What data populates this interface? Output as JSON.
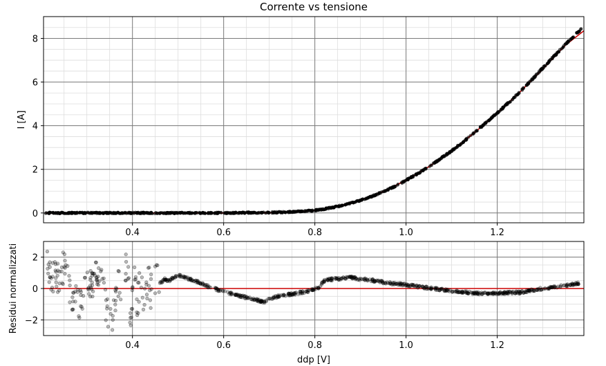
{
  "chart_data": [
    {
      "type": "scatter",
      "title": "Corrente vs tensione",
      "xlabel": "",
      "ylabel": "I [A]",
      "xlim": [
        0.205,
        1.39
      ],
      "ylim": [
        -0.45,
        9.0
      ],
      "x_ticks": [
        0.4,
        0.6,
        0.8,
        1.0,
        1.2
      ],
      "x_tick_labels": [
        "0.4",
        "0.6",
        "0.8",
        "1.0",
        "1.2"
      ],
      "y_ticks": [
        0,
        2,
        4,
        6,
        8
      ],
      "y_tick_labels": [
        "0",
        "2",
        "4",
        "6",
        "8"
      ],
      "grid": "major and minor",
      "colors": {
        "points": "#000000",
        "fit": "#cc0000",
        "major_grid": "#7a7a7a",
        "minor_grid": "#dddddd"
      },
      "series": [
        {
          "kind": "points",
          "x": [
            0.21,
            0.25,
            0.3,
            0.35,
            0.4,
            0.45,
            0.5,
            0.55,
            0.6,
            0.65,
            0.7,
            0.72,
            0.75,
            0.78,
            0.8,
            0.82,
            0.85,
            0.88,
            0.9,
            0.92,
            0.95,
            0.98,
            1.0,
            1.03,
            1.05,
            1.08,
            1.1,
            1.13,
            1.15,
            1.18,
            1.2,
            1.23,
            1.25,
            1.28,
            1.3,
            1.33,
            1.35,
            1.37,
            1.385
          ],
          "y": [
            0.0,
            0.0,
            0.0,
            0.0,
            0.0,
            0.0,
            0.0,
            0.0,
            0.0,
            0.01,
            0.02,
            0.03,
            0.05,
            0.08,
            0.12,
            0.18,
            0.3,
            0.45,
            0.58,
            0.72,
            0.98,
            1.26,
            1.5,
            1.86,
            2.12,
            2.55,
            2.85,
            3.33,
            3.68,
            4.22,
            4.58,
            5.15,
            5.55,
            6.2,
            6.65,
            7.3,
            7.75,
            8.15,
            8.45
          ]
        },
        {
          "kind": "fit",
          "x": [
            0.21,
            0.4,
            0.6,
            0.7,
            0.75,
            0.8,
            0.85,
            0.9,
            0.95,
            1.0,
            1.05,
            1.1,
            1.15,
            1.2,
            1.25,
            1.3,
            1.35,
            1.39
          ],
          "y": [
            0.0,
            0.0,
            0.0,
            0.01,
            0.04,
            0.12,
            0.3,
            0.58,
            0.98,
            1.5,
            2.12,
            2.85,
            3.68,
            4.58,
            5.55,
            6.6,
            7.7,
            8.35
          ]
        }
      ]
    },
    {
      "type": "scatter",
      "title": "",
      "xlabel": "ddp [V]",
      "ylabel": "Residui normalizzati",
      "xlim": [
        0.205,
        1.39
      ],
      "ylim": [
        -3.0,
        3.0
      ],
      "x_ticks": [
        0.4,
        0.6,
        0.8,
        1.0,
        1.2
      ],
      "x_tick_labels": [
        "0.4",
        "0.6",
        "0.8",
        "1.0",
        "1.2"
      ],
      "y_ticks": [
        -2,
        0,
        2
      ],
      "y_tick_labels": [
        "−2",
        "0",
        "2"
      ],
      "grid": "major and minor",
      "colors": {
        "points": "#000000",
        "zero_line": "#cc0000",
        "major_grid": "#7a7a7a",
        "minor_grid": "#dddddd"
      },
      "series": [
        {
          "kind": "points",
          "x": [
            0.21,
            0.22,
            0.24,
            0.25,
            0.26,
            0.28,
            0.3,
            0.31,
            0.33,
            0.34,
            0.35,
            0.36,
            0.37,
            0.38,
            0.385,
            0.39,
            0.395,
            0.4,
            0.405,
            0.41,
            0.415,
            0.42,
            0.425,
            0.43,
            0.435,
            0.44,
            0.445,
            0.45,
            0.46,
            0.47,
            0.48,
            0.49,
            0.5,
            0.52,
            0.54,
            0.56,
            0.58,
            0.6,
            0.62,
            0.64,
            0.66,
            0.68,
            0.69,
            0.7,
            0.72,
            0.74,
            0.76,
            0.78,
            0.8,
            0.81,
            0.82,
            0.84,
            0.86,
            0.88,
            0.9,
            0.92,
            0.94,
            0.96,
            0.98,
            1.0,
            1.03,
            1.06,
            1.1,
            1.15,
            1.2,
            1.25,
            1.3,
            1.34,
            1.37,
            1.38
          ],
          "y": [
            2.6,
            0.7,
            0.75,
            1.4,
            0.2,
            -1.1,
            0.5,
            0.3,
            1.1,
            -0.9,
            -2.0,
            -1.6,
            0.4,
            -2.5,
            1.5,
            1.0,
            -1.8,
            -0.7,
            0.5,
            -1.2,
            0.2,
            0.6,
            -0.5,
            0.1,
            0.8,
            -0.3,
            0.5,
            0.7,
            0.3,
            0.6,
            0.5,
            0.7,
            0.85,
            0.65,
            0.45,
            0.2,
            0.0,
            -0.2,
            -0.35,
            -0.5,
            -0.65,
            -0.8,
            -0.9,
            -0.65,
            -0.5,
            -0.4,
            -0.3,
            -0.2,
            -0.05,
            0.1,
            0.5,
            0.6,
            0.65,
            0.7,
            0.6,
            0.55,
            0.45,
            0.35,
            0.3,
            0.25,
            0.1,
            0.0,
            -0.15,
            -0.3,
            -0.3,
            -0.25,
            0.0,
            0.15,
            0.3,
            0.35
          ]
        }
      ]
    }
  ]
}
